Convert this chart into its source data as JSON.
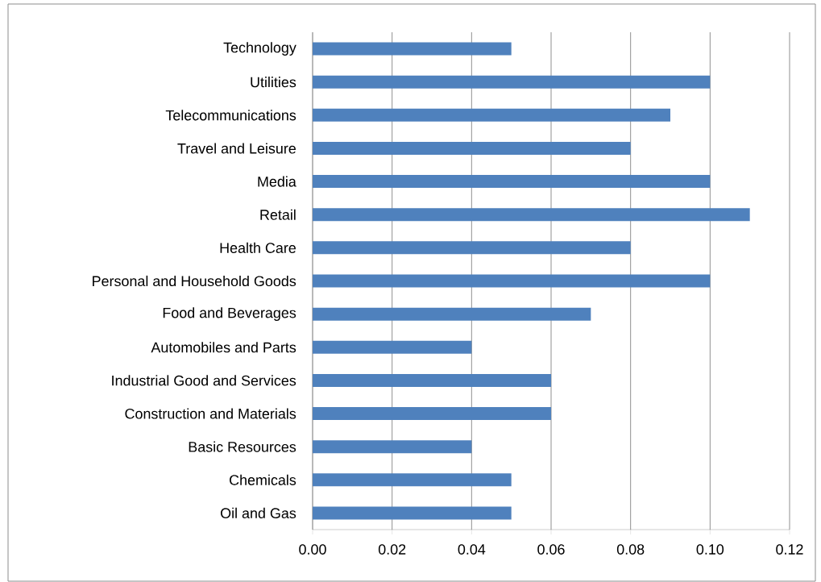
{
  "chart_data": {
    "type": "bar",
    "orientation": "horizontal",
    "categories": [
      "Technology",
      "Utilities",
      "Telecommunications",
      "Travel and Leisure",
      "Media",
      "Retail",
      "Health Care",
      "Personal and Household Goods",
      "Food and Beverages",
      "Automobiles and Parts",
      "Industrial Good and Services",
      "Construction and Materials",
      "Basic Resources",
      "Chemicals",
      "Oil and Gas"
    ],
    "values": [
      0.05,
      0.1,
      0.09,
      0.08,
      0.1,
      0.11,
      0.08,
      0.1,
      0.07,
      0.04,
      0.06,
      0.06,
      0.04,
      0.05,
      0.05
    ],
    "color": "#4f81bd",
    "xlim": [
      0,
      0.12
    ],
    "xticks": [
      {
        "value": 0,
        "label": "0.00"
      },
      {
        "value": 0.02,
        "label": "0.02"
      },
      {
        "value": 0.04,
        "label": "0.04"
      },
      {
        "value": 0.06,
        "label": "0.06"
      },
      {
        "value": 0.08,
        "label": "0.08"
      },
      {
        "value": 0.1,
        "label": "0.10"
      },
      {
        "value": 0.12,
        "label": "0.12"
      }
    ],
    "grid": "x"
  }
}
